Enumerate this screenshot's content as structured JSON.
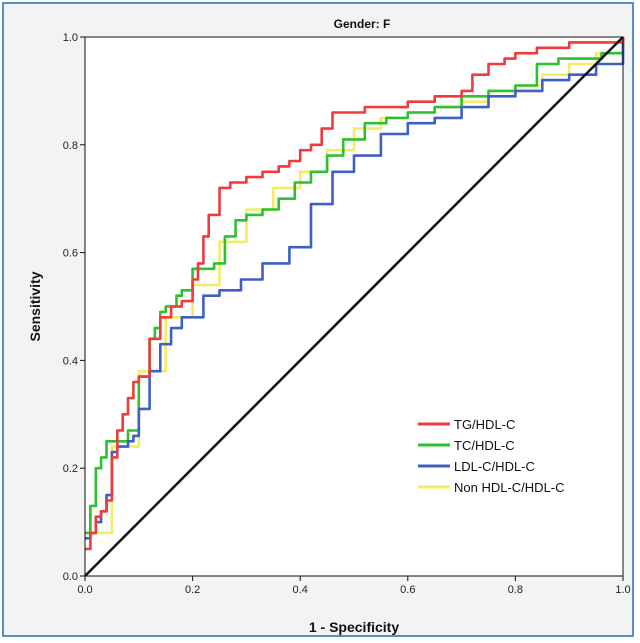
{
  "chart_data": {
    "type": "line",
    "title": "Gender: F",
    "xlabel": "1 - Specificity",
    "ylabel": "Sensitivity",
    "xlim": [
      0,
      1
    ],
    "ylim": [
      0,
      1
    ],
    "x_ticks": [
      "0.0",
      "0.2",
      "0.4",
      "0.6",
      "0.8",
      "1.0"
    ],
    "y_ticks": [
      "0.0",
      "0.2",
      "0.4",
      "0.6",
      "0.8",
      "1.0"
    ],
    "grid": false,
    "legend_position": "bottom-right",
    "reference_line": {
      "color": "#111111",
      "x": [
        0,
        1
      ],
      "y": [
        0,
        1
      ]
    },
    "series": [
      {
        "name": "TG/HDL-C",
        "color": "#ef3b3b",
        "x": [
          0,
          0.01,
          0.02,
          0.03,
          0.04,
          0.05,
          0.06,
          0.07,
          0.08,
          0.09,
          0.1,
          0.12,
          0.14,
          0.16,
          0.18,
          0.2,
          0.21,
          0.22,
          0.23,
          0.25,
          0.27,
          0.3,
          0.33,
          0.36,
          0.38,
          0.4,
          0.42,
          0.44,
          0.46,
          0.48,
          0.52,
          0.56,
          0.6,
          0.65,
          0.7,
          0.72,
          0.75,
          0.78,
          0.8,
          0.84,
          0.86,
          0.9,
          0.95,
          1.0
        ],
        "y": [
          0.05,
          0.08,
          0.11,
          0.12,
          0.14,
          0.22,
          0.27,
          0.3,
          0.33,
          0.36,
          0.37,
          0.44,
          0.48,
          0.5,
          0.51,
          0.55,
          0.58,
          0.63,
          0.67,
          0.72,
          0.73,
          0.74,
          0.75,
          0.76,
          0.77,
          0.79,
          0.8,
          0.83,
          0.86,
          0.86,
          0.87,
          0.87,
          0.88,
          0.89,
          0.9,
          0.93,
          0.95,
          0.96,
          0.97,
          0.98,
          0.98,
          0.99,
          0.99,
          1.0
        ]
      },
      {
        "name": "TC/HDL-C",
        "color": "#2ec02e",
        "x": [
          0,
          0.01,
          0.02,
          0.03,
          0.04,
          0.05,
          0.06,
          0.08,
          0.1,
          0.12,
          0.13,
          0.14,
          0.15,
          0.17,
          0.18,
          0.2,
          0.22,
          0.24,
          0.26,
          0.28,
          0.3,
          0.33,
          0.36,
          0.39,
          0.42,
          0.45,
          0.48,
          0.52,
          0.56,
          0.6,
          0.65,
          0.7,
          0.75,
          0.8,
          0.84,
          0.88,
          0.92,
          0.96,
          1.0
        ],
        "y": [
          0.08,
          0.13,
          0.2,
          0.22,
          0.25,
          0.25,
          0.25,
          0.27,
          0.37,
          0.44,
          0.46,
          0.49,
          0.5,
          0.52,
          0.53,
          0.57,
          0.57,
          0.58,
          0.63,
          0.66,
          0.67,
          0.68,
          0.7,
          0.73,
          0.75,
          0.78,
          0.81,
          0.84,
          0.85,
          0.86,
          0.87,
          0.89,
          0.9,
          0.91,
          0.95,
          0.96,
          0.96,
          0.97,
          1.0
        ]
      },
      {
        "name": "LDL-C/HDL-C",
        "color": "#3f5fc4",
        "x": [
          0,
          0.01,
          0.02,
          0.03,
          0.04,
          0.05,
          0.06,
          0.08,
          0.09,
          0.1,
          0.12,
          0.14,
          0.16,
          0.18,
          0.22,
          0.25,
          0.29,
          0.33,
          0.38,
          0.42,
          0.46,
          0.5,
          0.55,
          0.6,
          0.65,
          0.7,
          0.75,
          0.8,
          0.85,
          0.9,
          0.95,
          1.0
        ],
        "y": [
          0.07,
          0.08,
          0.1,
          0.12,
          0.15,
          0.23,
          0.24,
          0.25,
          0.26,
          0.31,
          0.38,
          0.43,
          0.46,
          0.48,
          0.52,
          0.53,
          0.55,
          0.58,
          0.61,
          0.69,
          0.75,
          0.78,
          0.82,
          0.84,
          0.85,
          0.87,
          0.89,
          0.9,
          0.92,
          0.93,
          0.95,
          1.0
        ]
      },
      {
        "name": "Non HDL-C/HDL-C",
        "color": "#f2ec66",
        "x": [
          0,
          0.05,
          0.1,
          0.15,
          0.2,
          0.25,
          0.3,
          0.35,
          0.4,
          0.45,
          0.5,
          0.55,
          0.6,
          0.65,
          0.7,
          0.75,
          0.8,
          0.85,
          0.9,
          0.95,
          1.0
        ],
        "y": [
          0.08,
          0.24,
          0.38,
          0.48,
          0.54,
          0.62,
          0.68,
          0.72,
          0.75,
          0.79,
          0.83,
          0.85,
          0.86,
          0.87,
          0.88,
          0.9,
          0.91,
          0.93,
          0.95,
          0.97,
          1.0
        ]
      }
    ]
  }
}
